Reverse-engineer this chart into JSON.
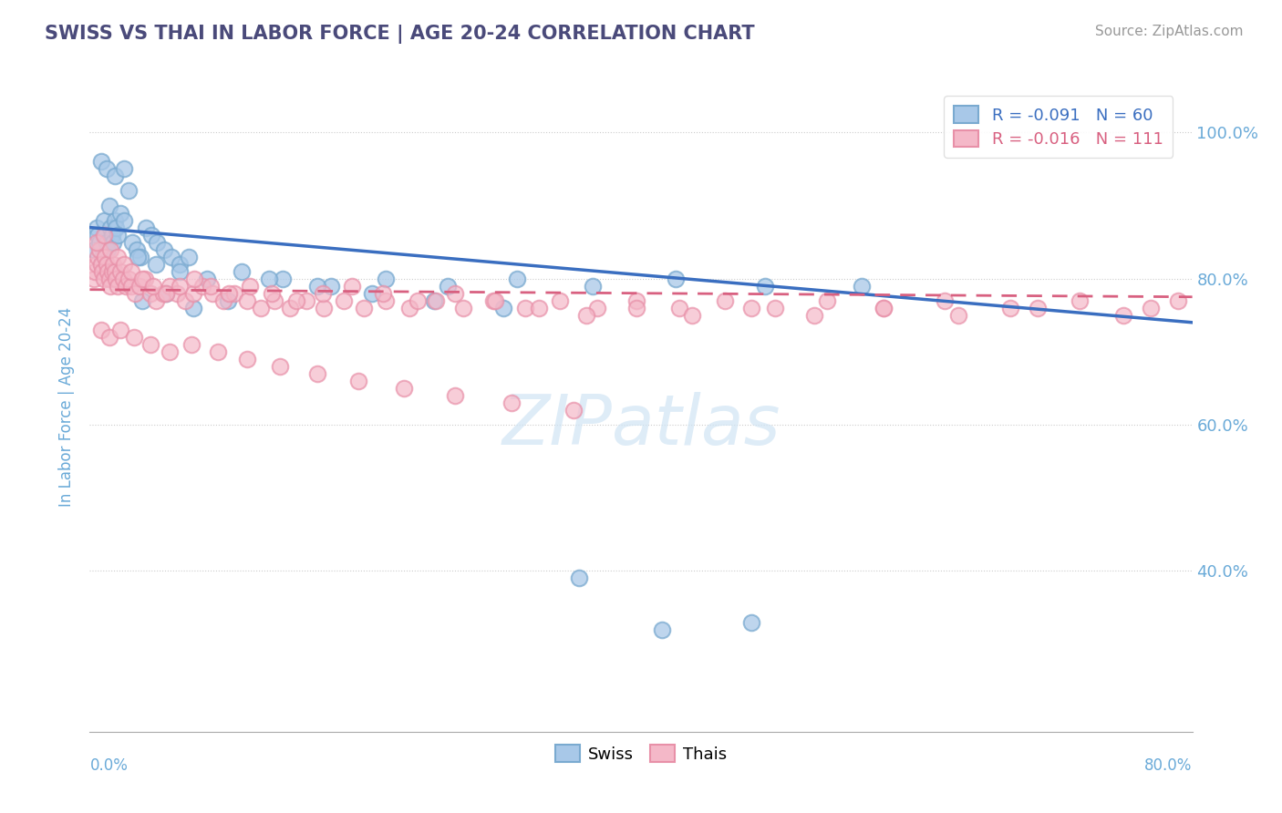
{
  "title": "SWISS VS THAI IN LABOR FORCE | AGE 20-24 CORRELATION CHART",
  "source": "Source: ZipAtlas.com",
  "ylabel": "In Labor Force | Age 20-24",
  "y_ticks_right": [
    40.0,
    60.0,
    80.0,
    100.0
  ],
  "x_range": [
    0.0,
    0.8
  ],
  "y_range": [
    0.18,
    1.07
  ],
  "legend_swiss": "Swiss",
  "legend_thais": "Thais",
  "r_swiss": -0.091,
  "n_swiss": 60,
  "r_thais": -0.016,
  "n_thais": 111,
  "blue_face": "#a8c8e8",
  "blue_edge": "#7aaad0",
  "pink_face": "#f4b8c8",
  "pink_edge": "#e890a8",
  "blue_line_color": "#3a6ec0",
  "pink_line_color": "#d86080",
  "title_color": "#4a4a7a",
  "axis_label_color": "#6aaad8",
  "watermark_color": "#d0e4f4",
  "swiss_x": [
    0.003,
    0.005,
    0.006,
    0.007,
    0.008,
    0.009,
    0.01,
    0.011,
    0.012,
    0.013,
    0.014,
    0.015,
    0.016,
    0.017,
    0.018,
    0.019,
    0.02,
    0.022,
    0.025,
    0.028,
    0.031,
    0.034,
    0.037,
    0.041,
    0.045,
    0.049,
    0.054,
    0.059,
    0.065,
    0.072,
    0.008,
    0.012,
    0.018,
    0.025,
    0.035,
    0.048,
    0.065,
    0.085,
    0.11,
    0.14,
    0.175,
    0.215,
    0.26,
    0.31,
    0.365,
    0.425,
    0.49,
    0.56,
    0.038,
    0.055,
    0.075,
    0.1,
    0.13,
    0.165,
    0.205,
    0.25,
    0.3,
    0.355,
    0.415,
    0.48
  ],
  "swiss_y": [
    0.84,
    0.87,
    0.86,
    0.85,
    0.82,
    0.83,
    0.88,
    0.86,
    0.85,
    0.84,
    0.9,
    0.87,
    0.86,
    0.85,
    0.88,
    0.87,
    0.86,
    0.89,
    0.88,
    0.92,
    0.85,
    0.84,
    0.83,
    0.87,
    0.86,
    0.85,
    0.84,
    0.83,
    0.82,
    0.83,
    0.96,
    0.95,
    0.94,
    0.95,
    0.83,
    0.82,
    0.81,
    0.8,
    0.81,
    0.8,
    0.79,
    0.8,
    0.79,
    0.8,
    0.79,
    0.8,
    0.79,
    0.79,
    0.77,
    0.78,
    0.76,
    0.77,
    0.8,
    0.79,
    0.78,
    0.77,
    0.76,
    0.39,
    0.32,
    0.33
  ],
  "thai_x": [
    0.003,
    0.004,
    0.005,
    0.006,
    0.007,
    0.008,
    0.009,
    0.01,
    0.011,
    0.012,
    0.013,
    0.014,
    0.015,
    0.016,
    0.017,
    0.018,
    0.019,
    0.02,
    0.022,
    0.024,
    0.026,
    0.028,
    0.03,
    0.033,
    0.036,
    0.04,
    0.044,
    0.048,
    0.053,
    0.058,
    0.063,
    0.069,
    0.075,
    0.082,
    0.089,
    0.097,
    0.105,
    0.114,
    0.124,
    0.134,
    0.145,
    0.157,
    0.17,
    0.184,
    0.199,
    0.215,
    0.232,
    0.251,
    0.271,
    0.293,
    0.316,
    0.341,
    0.368,
    0.397,
    0.428,
    0.461,
    0.497,
    0.535,
    0.576,
    0.62,
    0.668,
    0.718,
    0.77,
    0.79,
    0.005,
    0.01,
    0.015,
    0.02,
    0.025,
    0.03,
    0.038,
    0.046,
    0.055,
    0.065,
    0.076,
    0.088,
    0.101,
    0.116,
    0.132,
    0.15,
    0.169,
    0.19,
    0.213,
    0.238,
    0.265,
    0.294,
    0.326,
    0.36,
    0.397,
    0.437,
    0.48,
    0.526,
    0.576,
    0.63,
    0.688,
    0.75,
    0.008,
    0.014,
    0.022,
    0.032,
    0.044,
    0.058,
    0.074,
    0.093,
    0.114,
    0.138,
    0.165,
    0.195,
    0.228,
    0.265,
    0.306,
    0.351
  ],
  "thai_y": [
    0.8,
    0.81,
    0.82,
    0.83,
    0.84,
    0.82,
    0.81,
    0.8,
    0.83,
    0.82,
    0.81,
    0.8,
    0.79,
    0.81,
    0.82,
    0.81,
    0.8,
    0.79,
    0.81,
    0.8,
    0.79,
    0.8,
    0.79,
    0.78,
    0.79,
    0.8,
    0.78,
    0.77,
    0.78,
    0.79,
    0.78,
    0.77,
    0.78,
    0.79,
    0.78,
    0.77,
    0.78,
    0.77,
    0.76,
    0.77,
    0.76,
    0.77,
    0.76,
    0.77,
    0.76,
    0.77,
    0.76,
    0.77,
    0.76,
    0.77,
    0.76,
    0.77,
    0.76,
    0.77,
    0.76,
    0.77,
    0.76,
    0.77,
    0.76,
    0.77,
    0.76,
    0.77,
    0.76,
    0.77,
    0.85,
    0.86,
    0.84,
    0.83,
    0.82,
    0.81,
    0.8,
    0.79,
    0.78,
    0.79,
    0.8,
    0.79,
    0.78,
    0.79,
    0.78,
    0.77,
    0.78,
    0.79,
    0.78,
    0.77,
    0.78,
    0.77,
    0.76,
    0.75,
    0.76,
    0.75,
    0.76,
    0.75,
    0.76,
    0.75,
    0.76,
    0.75,
    0.73,
    0.72,
    0.73,
    0.72,
    0.71,
    0.7,
    0.71,
    0.7,
    0.69,
    0.68,
    0.67,
    0.66,
    0.65,
    0.64,
    0.63,
    0.62
  ],
  "swiss_trend_x0": 0.0,
  "swiss_trend_y0": 0.87,
  "swiss_trend_x1": 0.8,
  "swiss_trend_y1": 0.74,
  "thai_trend_x0": 0.0,
  "thai_trend_y0": 0.785,
  "thai_trend_x1": 0.8,
  "thai_trend_y1": 0.775
}
